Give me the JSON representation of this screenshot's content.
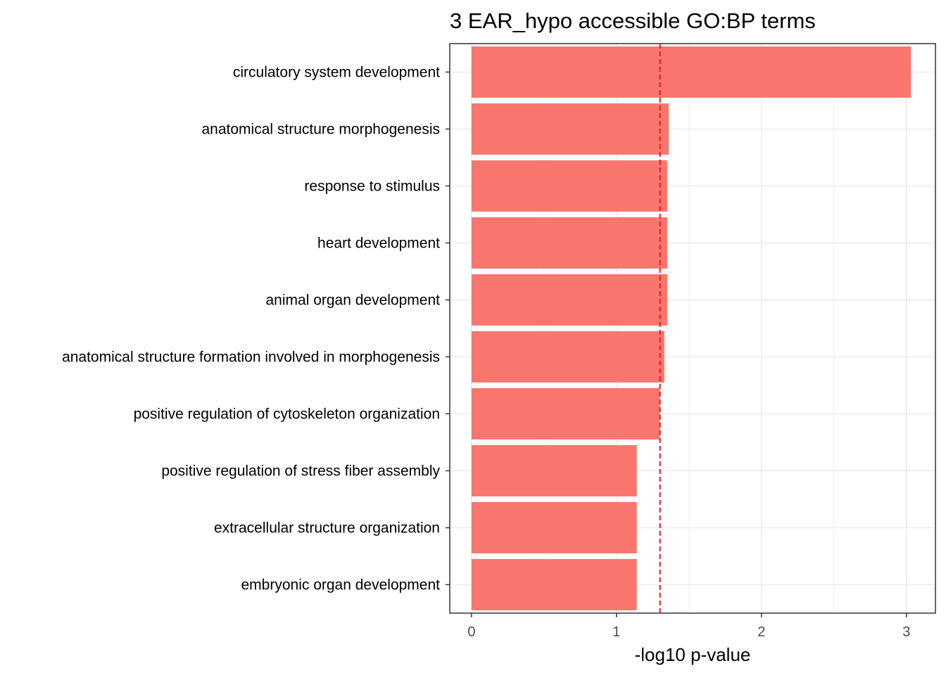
{
  "chart_data": {
    "type": "bar",
    "orientation": "horizontal",
    "title": "3 EAR_hypo accessible GO:BP terms",
    "xlabel": "-log10 p-value",
    "ylabel": "",
    "categories": [
      "circulatory system development",
      "anatomical structure morphogenesis",
      "response to stimulus",
      "heart development",
      "animal organ development",
      "anatomical structure formation involved in morphogenesis",
      "positive regulation of cytoskeleton organization",
      "positive regulation of stress fiber assembly",
      "extracellular structure organization",
      "embryonic organ development"
    ],
    "values": [
      3.03,
      1.36,
      1.35,
      1.35,
      1.35,
      1.33,
      1.3,
      1.14,
      1.14,
      1.14
    ],
    "xlim": [
      -0.15,
      3.2
    ],
    "xticks": [
      0,
      1,
      2,
      3
    ],
    "xtick_labels": [
      "0",
      "1",
      "2",
      "3"
    ],
    "threshold_line": 1.3,
    "bar_color": "#f8766d",
    "threshold_color": "#e31a1c",
    "grid": true
  }
}
